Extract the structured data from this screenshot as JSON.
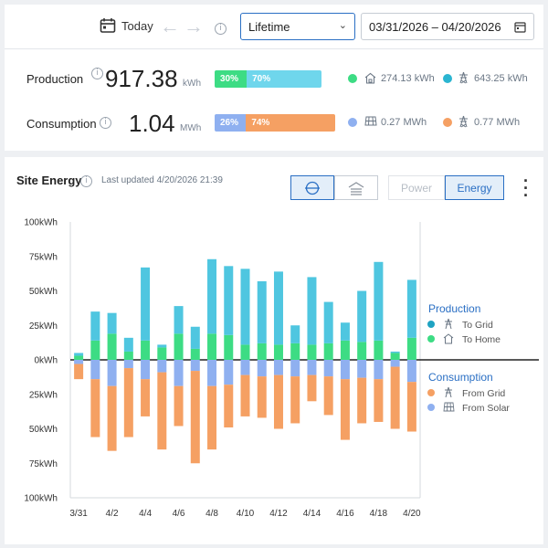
{
  "toolbar": {
    "today_label": "Today",
    "range_value": "Lifetime",
    "date_range": "03/31/2026 – 04/20/2026"
  },
  "production": {
    "label": "Production",
    "value": "917.38",
    "unit": "kWh",
    "home_pct": "30%",
    "grid_pct": "70%",
    "home_value": "274.13 kWh",
    "grid_value": "643.25 kWh"
  },
  "consumption": {
    "label": "Consumption",
    "value": "1.04",
    "unit": "MWh",
    "solar_pct": "26%",
    "grid_pct": "74%",
    "solar_value": "0.27 MWh",
    "grid_value": "0.77 MWh"
  },
  "site": {
    "title": "Site Energy",
    "updated": "Last updated 4/20/2026 21:39",
    "power_label": "Power",
    "energy_label": "Energy"
  },
  "colors": {
    "to_grid": "#4fc6e0",
    "to_home": "#3ddc84",
    "from_grid": "#f5a063",
    "from_solar": "#8fb0f0"
  },
  "chart_data": {
    "type": "bar",
    "stacked": true,
    "x": [
      "3/31",
      "4/1",
      "4/2",
      "4/3",
      "4/4",
      "4/5",
      "4/6",
      "4/7",
      "4/8",
      "4/9",
      "4/10",
      "4/11",
      "4/12",
      "4/13",
      "4/14",
      "4/15",
      "4/16",
      "4/17",
      "4/18",
      "4/19",
      "4/20"
    ],
    "tick_labels": [
      "3/31",
      "4/2",
      "4/4",
      "4/6",
      "4/8",
      "4/10",
      "4/12",
      "4/14",
      "4/16",
      "4/18",
      "4/20"
    ],
    "ylim": [
      -100,
      100
    ],
    "y_ticks": [
      100,
      75,
      50,
      25,
      0,
      -25,
      -50,
      -75,
      -100
    ],
    "y_tick_labels": [
      "100kWh",
      "75kWh",
      "50kWh",
      "25kWh",
      "0kWh",
      "25kWh",
      "50kWh",
      "75kWh",
      "100kWh"
    ],
    "grid": "vertical-frame",
    "legend": "right",
    "legend_groups": [
      {
        "title": "Production",
        "entries": [
          "To Grid",
          "To Home"
        ]
      },
      {
        "title": "Consumption",
        "entries": [
          "From Grid",
          "From Solar"
        ]
      }
    ],
    "series": [
      {
        "name": "To Home",
        "values": [
          3,
          14,
          19,
          6,
          14,
          9,
          19,
          8,
          19,
          18,
          11,
          12,
          11,
          12,
          11,
          12,
          14,
          13,
          14,
          5,
          16
        ]
      },
      {
        "name": "To Grid",
        "values": [
          2,
          21,
          15,
          10,
          53,
          2,
          20,
          16,
          54,
          50,
          55,
          45,
          53,
          13,
          49,
          30,
          13,
          37,
          57,
          1,
          42
        ]
      },
      {
        "name": "From Solar",
        "values": [
          -3,
          -14,
          -19,
          -6,
          -14,
          -9,
          -19,
          -8,
          -19,
          -18,
          -11,
          -12,
          -11,
          -12,
          -11,
          -12,
          -14,
          -13,
          -14,
          -5,
          -16
        ]
      },
      {
        "name": "From Grid",
        "values": [
          -11,
          -42,
          -47,
          -50,
          -27,
          -56,
          -29,
          -67,
          -46,
          -31,
          -30,
          -30,
          -39,
          -34,
          -19,
          -28,
          -44,
          -33,
          -31,
          -45,
          -36
        ]
      }
    ]
  }
}
